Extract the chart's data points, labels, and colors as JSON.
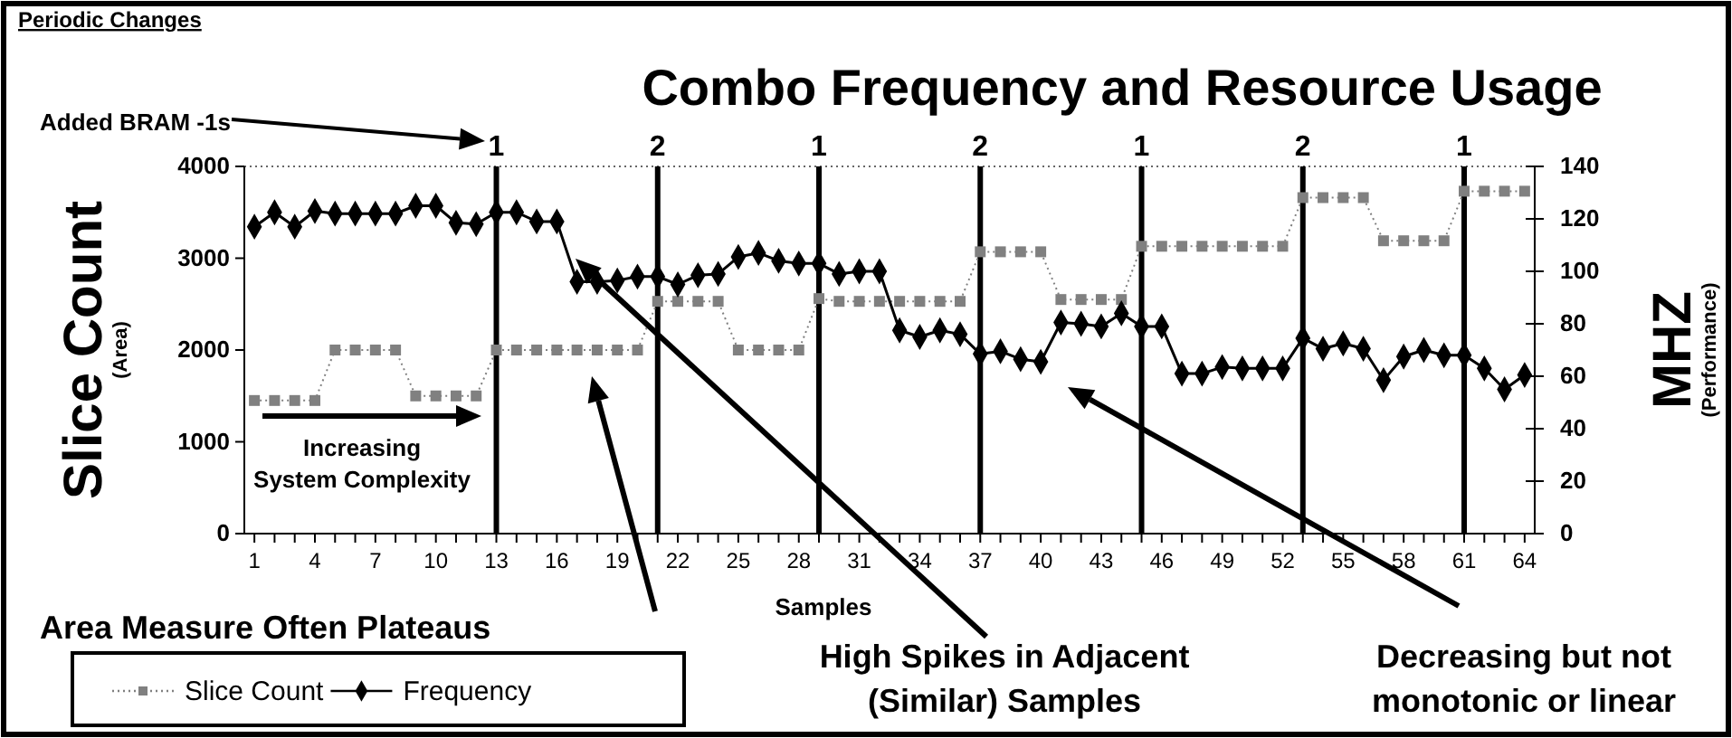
{
  "chart_data": {
    "type": "line",
    "title": "Combo Frequency and Resource Usage",
    "xlabel": "Samples",
    "ylabel": "Slice Count (Area)",
    "y2label": "MHZ (Performance)",
    "x": [
      1,
      2,
      3,
      4,
      5,
      6,
      7,
      8,
      9,
      10,
      11,
      12,
      13,
      14,
      15,
      16,
      17,
      18,
      19,
      20,
      21,
      22,
      23,
      24,
      25,
      26,
      27,
      28,
      29,
      30,
      31,
      32,
      33,
      34,
      35,
      36,
      37,
      38,
      39,
      40,
      41,
      42,
      43,
      44,
      45,
      46,
      47,
      48,
      49,
      50,
      51,
      52,
      53,
      54,
      55,
      56,
      57,
      58,
      59,
      60,
      61,
      62,
      63,
      64
    ],
    "xlim": [
      0.5,
      64.5
    ],
    "xticks": [
      1,
      {
        "value": 2,
        "label": null
      },
      {
        "value": 3,
        "label": null
      },
      4,
      {
        "value": 5,
        "label": null
      },
      {
        "value": 6,
        "label": null
      },
      7,
      {
        "value": 8,
        "label": null
      },
      {
        "value": 9,
        "label": null
      },
      10,
      {
        "value": 11,
        "label": null
      },
      {
        "value": 12,
        "label": null
      },
      13,
      {
        "value": 14,
        "label": null
      },
      {
        "value": 15,
        "label": null
      },
      16,
      {
        "value": 17,
        "label": null
      },
      {
        "value": 18,
        "label": null
      },
      19,
      {
        "value": 20,
        "label": null
      },
      {
        "value": 21,
        "label": null
      },
      22,
      {
        "value": 23,
        "label": null
      },
      {
        "value": 24,
        "label": null
      },
      25,
      {
        "value": 26,
        "label": null
      },
      {
        "value": 27,
        "label": null
      },
      28,
      {
        "value": 29,
        "label": null
      },
      {
        "value": 30,
        "label": null
      },
      31,
      {
        "value": 32,
        "label": null
      },
      {
        "value": 33,
        "label": null
      },
      34,
      {
        "value": 35,
        "label": null
      },
      {
        "value": 36,
        "label": null
      },
      37,
      {
        "value": 38,
        "label": null
      },
      {
        "value": 39,
        "label": null
      },
      40,
      {
        "value": 41,
        "label": null
      },
      {
        "value": 42,
        "label": null
      },
      43,
      {
        "value": 44,
        "label": null
      },
      {
        "value": 45,
        "label": null
      },
      46,
      {
        "value": 47,
        "label": null
      },
      {
        "value": 48,
        "label": null
      },
      49,
      {
        "value": 50,
        "label": null
      },
      {
        "value": 51,
        "label": null
      },
      52,
      {
        "value": 53,
        "label": null
      },
      {
        "value": 54,
        "label": null
      },
      55,
      {
        "value": 56,
        "label": null
      },
      {
        "value": 57,
        "label": null
      },
      58,
      {
        "value": 59,
        "label": null
      },
      {
        "value": 60,
        "label": null
      },
      61,
      {
        "value": 62,
        "label": null
      },
      {
        "value": 63,
        "label": null
      },
      64
    ],
    "ylim": [
      0,
      4000
    ],
    "yticks": [
      0,
      1000,
      2000,
      3000,
      4000
    ],
    "y2lim": [
      0,
      140
    ],
    "y2ticks": [
      0,
      20,
      40,
      60,
      80,
      100,
      120,
      140
    ],
    "grid": false,
    "legend": "bottom left",
    "series": [
      {
        "name": "Slice Count",
        "color": "#808080",
        "marker": "square",
        "line_style": "dotted",
        "values": [
          1450,
          1450,
          1450,
          1450,
          2000,
          2000,
          2000,
          2000,
          1500,
          1500,
          1500,
          1500,
          2000,
          2000,
          2000,
          2000,
          2000,
          2000,
          2000,
          2000,
          2530,
          2530,
          2530,
          2530,
          2000,
          2000,
          2000,
          2000,
          2560,
          2530,
          2530,
          2530,
          2530,
          2530,
          2530,
          2530,
          3070,
          3070,
          3070,
          3070,
          2550,
          2550,
          2550,
          2550,
          3130,
          3130,
          3130,
          3130,
          3130,
          3130,
          3130,
          3130,
          3660,
          3660,
          3660,
          3660,
          3190,
          3190,
          3190,
          3190,
          3730,
          3730,
          3730,
          3730
        ]
      },
      {
        "name": "Frequency",
        "color": "#000000",
        "marker": "diamond",
        "line_style": "solid",
        "axis": "y2",
        "values": [
          117,
          122.5,
          117,
          123,
          122,
          122,
          122,
          122,
          125,
          125,
          118.5,
          118,
          122.5,
          122.5,
          119,
          119,
          96,
          96,
          96.5,
          98,
          98,
          95,
          98.5,
          99,
          105.5,
          107,
          104,
          103,
          103,
          99,
          100,
          100,
          77.5,
          75,
          77.5,
          76,
          68.5,
          69.5,
          66.5,
          65.5,
          80.5,
          80,
          79,
          84,
          79,
          79,
          61,
          61,
          63.5,
          63,
          63,
          63,
          74.5,
          70.5,
          72.5,
          70.5,
          58.5,
          67.5,
          70,
          68,
          68,
          63,
          55,
          60.5
        ]
      }
    ],
    "ref_lines": [
      {
        "axis": "x",
        "value": 13
      },
      {
        "axis": "x",
        "value": 21
      },
      {
        "axis": "x",
        "value": 29
      },
      {
        "axis": "x",
        "value": 37
      },
      {
        "axis": "x",
        "value": 45
      },
      {
        "axis": "x",
        "value": 53
      },
      {
        "axis": "x",
        "value": 61
      }
    ],
    "annotations": [
      "Periodic Changes",
      "Added BRAM -1s",
      "Increasing System Complexity",
      "Area Measure Often Plateaus",
      "High Spikes in Adjacent (Similar) Samples",
      "Decreasing but not monotonic or linear",
      {
        "text": "1",
        "x": 13,
        "y": 4000
      },
      {
        "text": "2",
        "x": 21,
        "y": 4000
      },
      {
        "text": "1",
        "x": 29,
        "y": 4000
      },
      {
        "text": "2",
        "x": 37,
        "y": 4000
      },
      {
        "text": "1",
        "x": 45,
        "y": 4000
      },
      {
        "text": "2",
        "x": 53,
        "y": 4000
      },
      {
        "text": "1",
        "x": 61,
        "y": 4000
      }
    ]
  }
}
